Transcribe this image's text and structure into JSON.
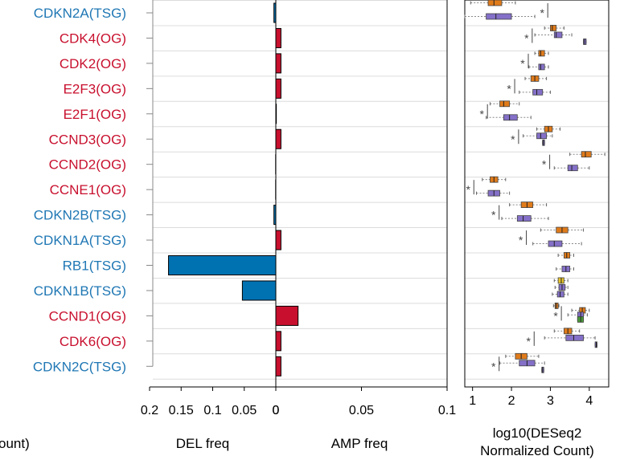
{
  "chart_data": [
    {
      "type": "bar",
      "categories": [
        "CDKN2A(TSG)",
        "CDK4(OG)",
        "CDK2(OG)",
        "E2F3(OG)",
        "E2F1(OG)",
        "CCND3(OG)",
        "CCND2(OG)",
        "CCNE1(OG)",
        "CDKN2B(TSG)",
        "CDKN1A(TSG)",
        "RB1(TSG)",
        "CDKN1B(TSG)",
        "CCND1(OG)",
        "CDK6(OG)",
        "CDKN2C(TSG)"
      ],
      "category_colors": [
        "#1f77b4",
        "#c8102e",
        "#c8102e",
        "#c8102e",
        "#c8102e",
        "#c8102e",
        "#c8102e",
        "#c8102e",
        "#1f77b4",
        "#1f77b4",
        "#1f77b4",
        "#1f77b4",
        "#c8102e",
        "#c8102e",
        "#1f77b4"
      ],
      "series": [
        {
          "values": [
            0.003,
            0,
            0,
            0,
            0,
            0,
            0.0003,
            0.0003,
            0.003,
            0,
            0.17,
            0.053,
            0,
            0,
            0
          ],
          "color": "#0072b2"
        },
        {
          "values": [
            0,
            0.003,
            0.003,
            0.003,
            0.0003,
            0.003,
            0,
            0,
            0,
            0.003,
            0,
            0,
            0.013,
            0.003,
            0.003
          ],
          "color": "#c8102e"
        }
      ],
      "del_ticks": [
        "0.2",
        "0.15",
        "0.1",
        "0.05",
        "0"
      ],
      "del_tick_values": [
        0.2,
        0.15,
        0.1,
        0.05,
        0
      ],
      "amp_ticks": [
        "0",
        "0.05",
        "0.1"
      ],
      "amp_tick_values": [
        0,
        0.05,
        0.1
      ],
      "del_xlim": [
        0.2,
        0
      ],
      "amp_xlim": [
        0,
        0.1
      ],
      "xlabel_del": "DEL freq",
      "xlabel_amp": "AMP freq",
      "left_cut_label": "ount)"
    },
    {
      "type": "box",
      "xlabel": "log10(DESeq2 Normalized Count)",
      "xlabel_lines": [
        "log10(DESeq2",
        "Normalized Count)"
      ],
      "xlim": [
        0.8,
        4.5
      ],
      "ticks": [
        "1",
        "2",
        "3",
        "4"
      ],
      "tick_values": [
        1,
        2,
        3,
        4
      ],
      "marker_symbol": "*",
      "rows": [
        {
          "gene": "CDKN2A(TSG)",
          "marker": 2.85,
          "boxes": [
            {
              "color": "#e07b1a",
              "q1": 1.4,
              "med": 1.55,
              "q3": 1.75,
              "lo": 0.95,
              "hi": 2.1
            },
            {
              "color": "#8470c8",
              "q1": 1.35,
              "med": 1.6,
              "q3": 2.0,
              "lo": 0.8,
              "hi": 2.6
            }
          ]
        },
        {
          "gene": "CDK4(OG)",
          "marker": 2.45,
          "boxes": [
            {
              "color": "#e07b1a",
              "q1": 3.0,
              "med": 3.05,
              "q3": 3.15,
              "lo": 2.85,
              "hi": 3.35
            },
            {
              "color": "#8470c8",
              "q1": 3.1,
              "med": 3.15,
              "q3": 3.3,
              "lo": 2.6,
              "hi": 3.55
            },
            {
              "color": "#8470c8",
              "q1": 3.85,
              "med": 3.88,
              "q3": 3.92,
              "lo": 3.85,
              "hi": 3.92
            }
          ]
        },
        {
          "gene": "CDK2(OG)",
          "marker": 2.35,
          "boxes": [
            {
              "color": "#e07b1a",
              "q1": 2.7,
              "med": 2.75,
              "q3": 2.85,
              "lo": 2.6,
              "hi": 2.95
            },
            {
              "color": "#8470c8",
              "q1": 2.7,
              "med": 2.75,
              "q3": 2.85,
              "lo": 2.45,
              "hi": 2.95
            }
          ]
        },
        {
          "gene": "E2F3(OG)",
          "marker": 2.0,
          "boxes": [
            {
              "color": "#e07b1a",
              "q1": 2.5,
              "med": 2.6,
              "q3": 2.7,
              "lo": 2.35,
              "hi": 2.9
            },
            {
              "color": "#8470c8",
              "q1": 2.55,
              "med": 2.65,
              "q3": 2.8,
              "lo": 2.2,
              "hi": 3.0
            }
          ]
        },
        {
          "gene": "E2F1(OG)",
          "marker": 1.3,
          "boxes": [
            {
              "color": "#e07b1a",
              "q1": 1.7,
              "med": 1.8,
              "q3": 1.95,
              "lo": 1.45,
              "hi": 2.2
            },
            {
              "color": "#8470c8",
              "q1": 1.8,
              "med": 1.95,
              "q3": 2.15,
              "lo": 1.35,
              "hi": 2.5
            }
          ]
        },
        {
          "gene": "CCND3(OG)",
          "marker": 2.1,
          "boxes": [
            {
              "color": "#e07b1a",
              "q1": 2.85,
              "med": 2.95,
              "q3": 3.05,
              "lo": 2.65,
              "hi": 3.25
            },
            {
              "color": "#8470c8",
              "q1": 2.65,
              "med": 2.75,
              "q3": 2.9,
              "lo": 2.3,
              "hi": 3.05
            },
            {
              "color": "#8470c8",
              "q1": 2.8,
              "med": 2.82,
              "q3": 2.85,
              "lo": 2.8,
              "hi": 2.85
            }
          ]
        },
        {
          "gene": "CCND2(OG)",
          "marker": 2.9,
          "boxes": [
            {
              "color": "#e07b1a",
              "q1": 3.8,
              "med": 3.9,
              "q3": 4.05,
              "lo": 3.5,
              "hi": 4.4
            },
            {
              "color": "#8470c8",
              "q1": 3.45,
              "med": 3.55,
              "q3": 3.7,
              "lo": 3.1,
              "hi": 4.0
            }
          ]
        },
        {
          "gene": "CCNE1(OG)",
          "marker": 0.95,
          "boxes": [
            {
              "color": "#e07b1a",
              "q1": 1.45,
              "med": 1.55,
              "q3": 1.65,
              "lo": 1.25,
              "hi": 1.85
            },
            {
              "color": "#8470c8",
              "q1": 1.4,
              "med": 1.55,
              "q3": 1.7,
              "lo": 1.1,
              "hi": 1.95
            }
          ]
        },
        {
          "gene": "CDKN2B(TSG)",
          "marker": 1.6,
          "boxes": [
            {
              "color": "#e07b1a",
              "q1": 2.25,
              "med": 2.4,
              "q3": 2.55,
              "lo": 1.95,
              "hi": 2.9
            },
            {
              "color": "#8470c8",
              "q1": 2.15,
              "med": 2.3,
              "q3": 2.5,
              "lo": 1.75,
              "hi": 2.95
            }
          ]
        },
        {
          "gene": "CDKN1A(TSG)",
          "marker": 2.3,
          "boxes": [
            {
              "color": "#e07b1a",
              "q1": 3.15,
              "med": 3.3,
              "q3": 3.45,
              "lo": 2.75,
              "hi": 3.85
            },
            {
              "color": "#8470c8",
              "q1": 2.95,
              "med": 3.1,
              "q3": 3.3,
              "lo": 2.55,
              "hi": 3.8
            }
          ]
        },
        {
          "gene": "RB1(TSG)",
          "marker": null,
          "boxes": [
            {
              "color": "#e07b1a",
              "q1": 3.35,
              "med": 3.42,
              "q3": 3.5,
              "lo": 3.2,
              "hi": 3.6
            },
            {
              "color": "#8470c8",
              "q1": 3.3,
              "med": 3.4,
              "q3": 3.5,
              "lo": 3.15,
              "hi": 3.6
            }
          ]
        },
        {
          "gene": "CDKN1B(TSG)",
          "marker": null,
          "boxes": [
            {
              "color": "#e6c229",
              "q1": 3.2,
              "med": 3.28,
              "q3": 3.35,
              "lo": 3.1,
              "hi": 3.45
            },
            {
              "color": "#8470c8",
              "q1": 3.22,
              "med": 3.3,
              "q3": 3.38,
              "lo": 3.12,
              "hi": 3.45
            },
            {
              "color": "#8470c8",
              "q1": 3.18,
              "med": 3.25,
              "q3": 3.35,
              "lo": 3.05,
              "hi": 3.45
            }
          ]
        },
        {
          "gene": "CCND1(OG)",
          "marker": 3.2,
          "boxes": [
            {
              "color": "#e07b1a",
              "q1": 3.12,
              "med": 3.15,
              "q3": 3.2,
              "lo": 3.08,
              "hi": 3.22
            },
            {
              "color": "#e07b1a",
              "q1": 3.75,
              "med": 3.82,
              "q3": 3.9,
              "lo": 3.55,
              "hi": 4.0
            },
            {
              "color": "#8470c8",
              "q1": 3.7,
              "med": 3.78,
              "q3": 3.85,
              "lo": 3.45,
              "hi": 3.95
            },
            {
              "color": "#4a9a3a",
              "q1": 3.7,
              "med": 3.78,
              "q3": 3.85,
              "lo": 3.7,
              "hi": 3.85
            }
          ]
        },
        {
          "gene": "CDK6(OG)",
          "marker": 2.5,
          "boxes": [
            {
              "color": "#e07b1a",
              "q1": 3.35,
              "med": 3.45,
              "q3": 3.55,
              "lo": 3.1,
              "hi": 3.75
            },
            {
              "color": "#8470c8",
              "q1": 3.4,
              "med": 3.6,
              "q3": 3.85,
              "lo": 2.85,
              "hi": 4.15
            },
            {
              "color": "#8470c8",
              "q1": 4.15,
              "med": 4.18,
              "q3": 4.2,
              "lo": 4.15,
              "hi": 4.2
            }
          ]
        },
        {
          "gene": "CDKN2C(TSG)",
          "marker": 1.6,
          "boxes": [
            {
              "color": "#e07b1a",
              "q1": 2.1,
              "med": 2.25,
              "q3": 2.4,
              "lo": 1.85,
              "hi": 2.7
            },
            {
              "color": "#8470c8",
              "q1": 2.2,
              "med": 2.4,
              "q3": 2.6,
              "lo": 1.7,
              "hi": 2.85
            },
            {
              "color": "#8470c8",
              "q1": 2.78,
              "med": 2.8,
              "q3": 2.83,
              "lo": 2.78,
              "hi": 2.83
            }
          ]
        }
      ]
    }
  ]
}
